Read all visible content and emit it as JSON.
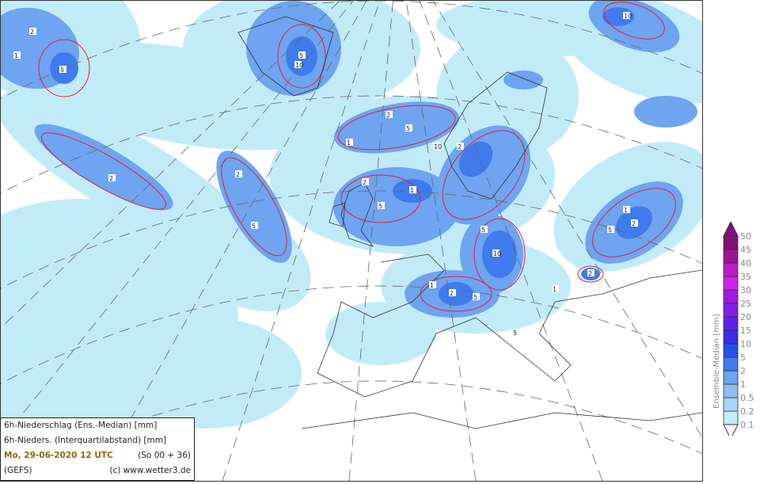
{
  "info": {
    "line1": "6h-Niederschlag (Ens.-Median) [mm]",
    "line2": "6h-Nieders. (Interquartilabstand) [mm]",
    "date": "Mo, 29-06-2020  12 UTC",
    "run": "(So 00 + 36)",
    "model": "(GEFS)",
    "copyright": "(c) www.wetter3.de"
  },
  "colorbar": {
    "title": "Ensemble-Median [mm]",
    "labels": [
      "0.1",
      "0.2",
      "0.5",
      "1",
      "2",
      "5",
      "10",
      "15",
      "20",
      "25",
      "30",
      "35",
      "40",
      "45",
      "50"
    ],
    "colors": [
      "#d9f7fc",
      "#c2ebf8",
      "#a9d6f5",
      "#8fbdf2",
      "#6ea4f0",
      "#3f7bec",
      "#2352ea",
      "#3a2ce8",
      "#5a22e8",
      "#7f1fe2",
      "#a01ae0",
      "#d022ea",
      "#c01ac4",
      "#a01294",
      "#80107a"
    ],
    "colors_note_top": "#80107a"
  },
  "contour_labels": [
    "5",
    "2",
    "1",
    "5",
    "10",
    "2",
    "5",
    "1",
    "2",
    "5",
    "10",
    "2",
    "1",
    "5",
    "2",
    "10",
    "5",
    "2",
    "1",
    "5",
    "2",
    "1",
    "5",
    "2",
    "1",
    "5",
    "2",
    "10"
  ],
  "colors": {
    "contour": "#e0203a",
    "graticule": "#666",
    "coast": "#333"
  }
}
